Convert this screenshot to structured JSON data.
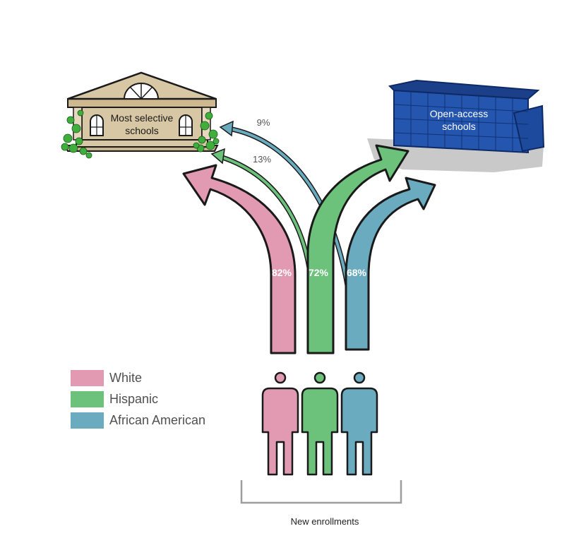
{
  "colors": {
    "white": "#e29ab2",
    "hispanic": "#6cc27a",
    "african_american": "#6aabc0",
    "selective_building": "#d8c7a4",
    "open_access_building": "#1f4fa3",
    "shadow": "#c9c9c9",
    "outline": "#1a1a1a",
    "bracket": "#9e9e9e"
  },
  "buildings": {
    "selective_label_line1": "Most selective",
    "selective_label_line2": "schools",
    "open_access_label_line1": "Open-access",
    "open_access_label_line2": "schools"
  },
  "flows": {
    "white_open_access_pct": "82%",
    "hispanic_open_access_pct": "72%",
    "african_american_open_access_pct": "68%",
    "hispanic_selective_pct": "13%",
    "african_american_selective_pct": "9%"
  },
  "legend": [
    {
      "label": "White",
      "color": "#e29ab2"
    },
    {
      "label": "Hispanic",
      "color": "#6cc27a"
    },
    {
      "label": "African American",
      "color": "#6aabc0"
    }
  ],
  "footer": {
    "label": "New enrollments"
  }
}
